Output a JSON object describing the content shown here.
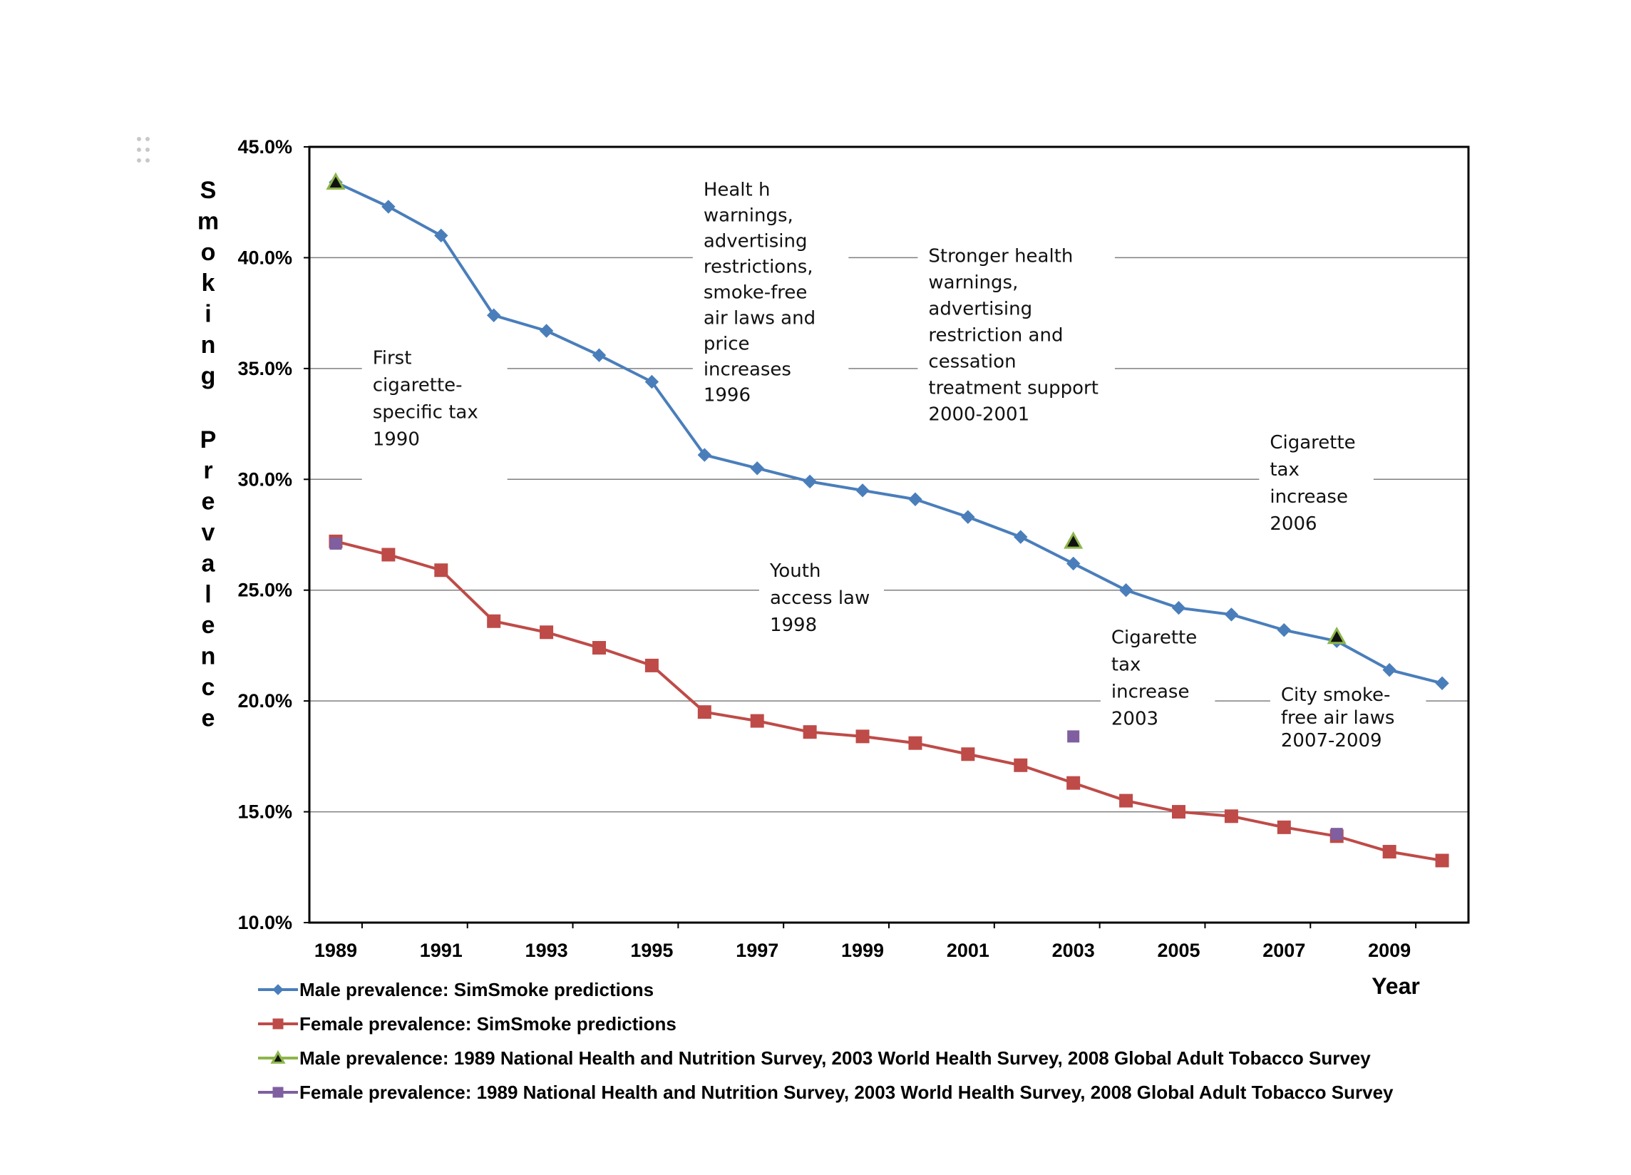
{
  "chart_data": {
    "type": "line",
    "title": "",
    "xlabel": "Year",
    "ylabel": "Smoking Prevalence",
    "ylim": [
      10.0,
      45.0
    ],
    "xlim": [
      1988.5,
      2010.5
    ],
    "y_ticks": [
      "10.0%",
      "15.0%",
      "20.0%",
      "25.0%",
      "30.0%",
      "35.0%",
      "40.0%",
      "45.0%"
    ],
    "x_ticks": [
      "1989",
      "1991",
      "1993",
      "1995",
      "1997",
      "1999",
      "2001",
      "2003",
      "2005",
      "2007",
      "2009"
    ],
    "grid": "horizontal",
    "legend_position": "bottom",
    "series": [
      {
        "name": "Male prevalence: SimSmoke predictions",
        "color": "#4a7ebb",
        "marker": "diamond",
        "x": [
          1989,
          1990,
          1991,
          1992,
          1993,
          1994,
          1995,
          1996,
          1997,
          1998,
          1999,
          2000,
          2001,
          2002,
          2003,
          2004,
          2005,
          2006,
          2007,
          2008,
          2009,
          2010
        ],
        "values": [
          43.4,
          42.3,
          41.0,
          37.4,
          36.7,
          35.6,
          34.4,
          31.1,
          30.5,
          29.9,
          29.5,
          29.1,
          28.3,
          27.4,
          26.2,
          25.0,
          24.2,
          23.9,
          23.2,
          22.7,
          21.4,
          20.8
        ]
      },
      {
        "name": "Female prevalence: SimSmoke predictions",
        "color": "#be4b48",
        "marker": "square",
        "x": [
          1989,
          1990,
          1991,
          1992,
          1993,
          1994,
          1995,
          1996,
          1997,
          1998,
          1999,
          2000,
          2001,
          2002,
          2003,
          2004,
          2005,
          2006,
          2007,
          2008,
          2009,
          2010
        ],
        "values": [
          27.2,
          26.6,
          25.9,
          23.6,
          23.1,
          22.4,
          21.6,
          19.5,
          19.1,
          18.6,
          18.4,
          18.1,
          17.6,
          17.1,
          16.3,
          15.5,
          15.0,
          14.8,
          14.3,
          13.9,
          13.2,
          12.8
        ]
      },
      {
        "name": "Male prevalence: 1989 National Health and Nutrition Survey, 2003 World Health Survey, 2008 Global Adult Tobacco Survey",
        "color": "#8db64a",
        "marker": "triangle",
        "x": [
          1989,
          2003,
          2008
        ],
        "values": [
          43.4,
          27.2,
          22.9
        ]
      },
      {
        "name": "Female prevalence: 1989 National Health and Nutrition Survey, 2003 World Health Survey, 2008 Global Adult Tobacco Survey",
        "color": "#7f5fa0",
        "marker": "square",
        "x": [
          1989,
          2003,
          2008
        ],
        "values": [
          27.1,
          18.4,
          14.0
        ]
      }
    ],
    "annotations": [
      {
        "lines": [
          "First",
          "cigarette-",
          "specific tax",
          "",
          "1990"
        ]
      },
      {
        "lines": [
          "Healt h",
          "warnings,",
          "advertising",
          "restrictions,",
          "smoke-free",
          "air laws and",
          "price",
          "increases",
          "",
          "1996"
        ]
      },
      {
        "lines": [
          "Stronger health",
          "warnings,",
          "advertising",
          "restriction and",
          "cessation",
          "treatment support",
          "",
          "2000-2001"
        ]
      },
      {
        "lines": [
          "Cigarette",
          "tax",
          "increase",
          "",
          "2006"
        ]
      },
      {
        "lines": [
          "Youth",
          "access law",
          "1998"
        ]
      },
      {
        "lines": [
          "Cigarette",
          "tax",
          "increase",
          "2003"
        ]
      },
      {
        "lines": [
          "City smoke-",
          "free air laws",
          "",
          "2007-2009"
        ]
      }
    ]
  }
}
